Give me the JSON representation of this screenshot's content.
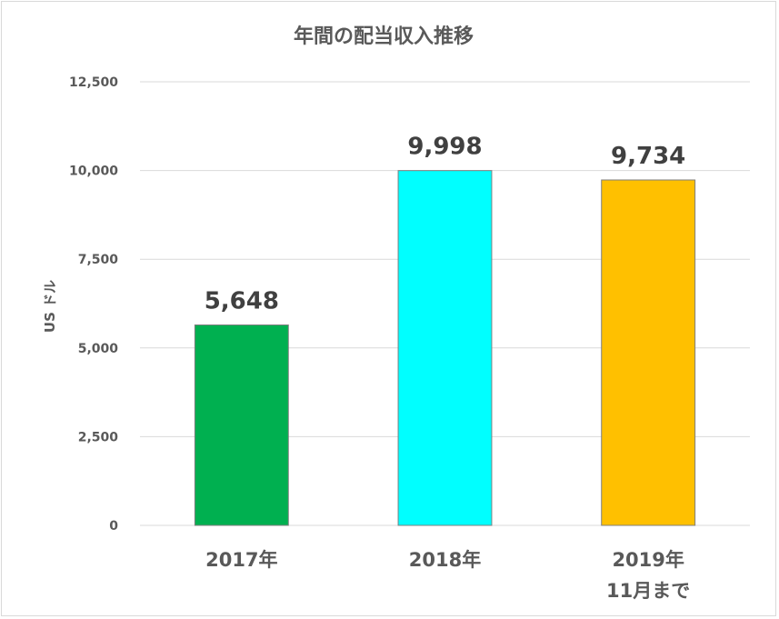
{
  "chart_data": {
    "type": "bar",
    "title": "年間の配当収入推移",
    "ylabel": "US ドル",
    "xlabel": "",
    "ylim": [
      0,
      12500
    ],
    "yticks": [
      0,
      2500,
      5000,
      7500,
      10000,
      12500
    ],
    "ytick_labels": [
      "0",
      "2,500",
      "5,000",
      "7,500",
      "10,000",
      "12,500"
    ],
    "grid": true,
    "legend": "none",
    "categories": [
      [
        "2017年"
      ],
      [
        "2018年"
      ],
      [
        "2019年",
        "11月まで"
      ]
    ],
    "values": [
      5648,
      9998,
      9734
    ],
    "data_labels": [
      "5,648",
      "9,998",
      "9,734"
    ],
    "colors": [
      "#00b050",
      "#00ffff",
      "#ffc000"
    ],
    "bar_edge_color": "#7f7f7f",
    "grid_color": "#d9d9d9"
  }
}
